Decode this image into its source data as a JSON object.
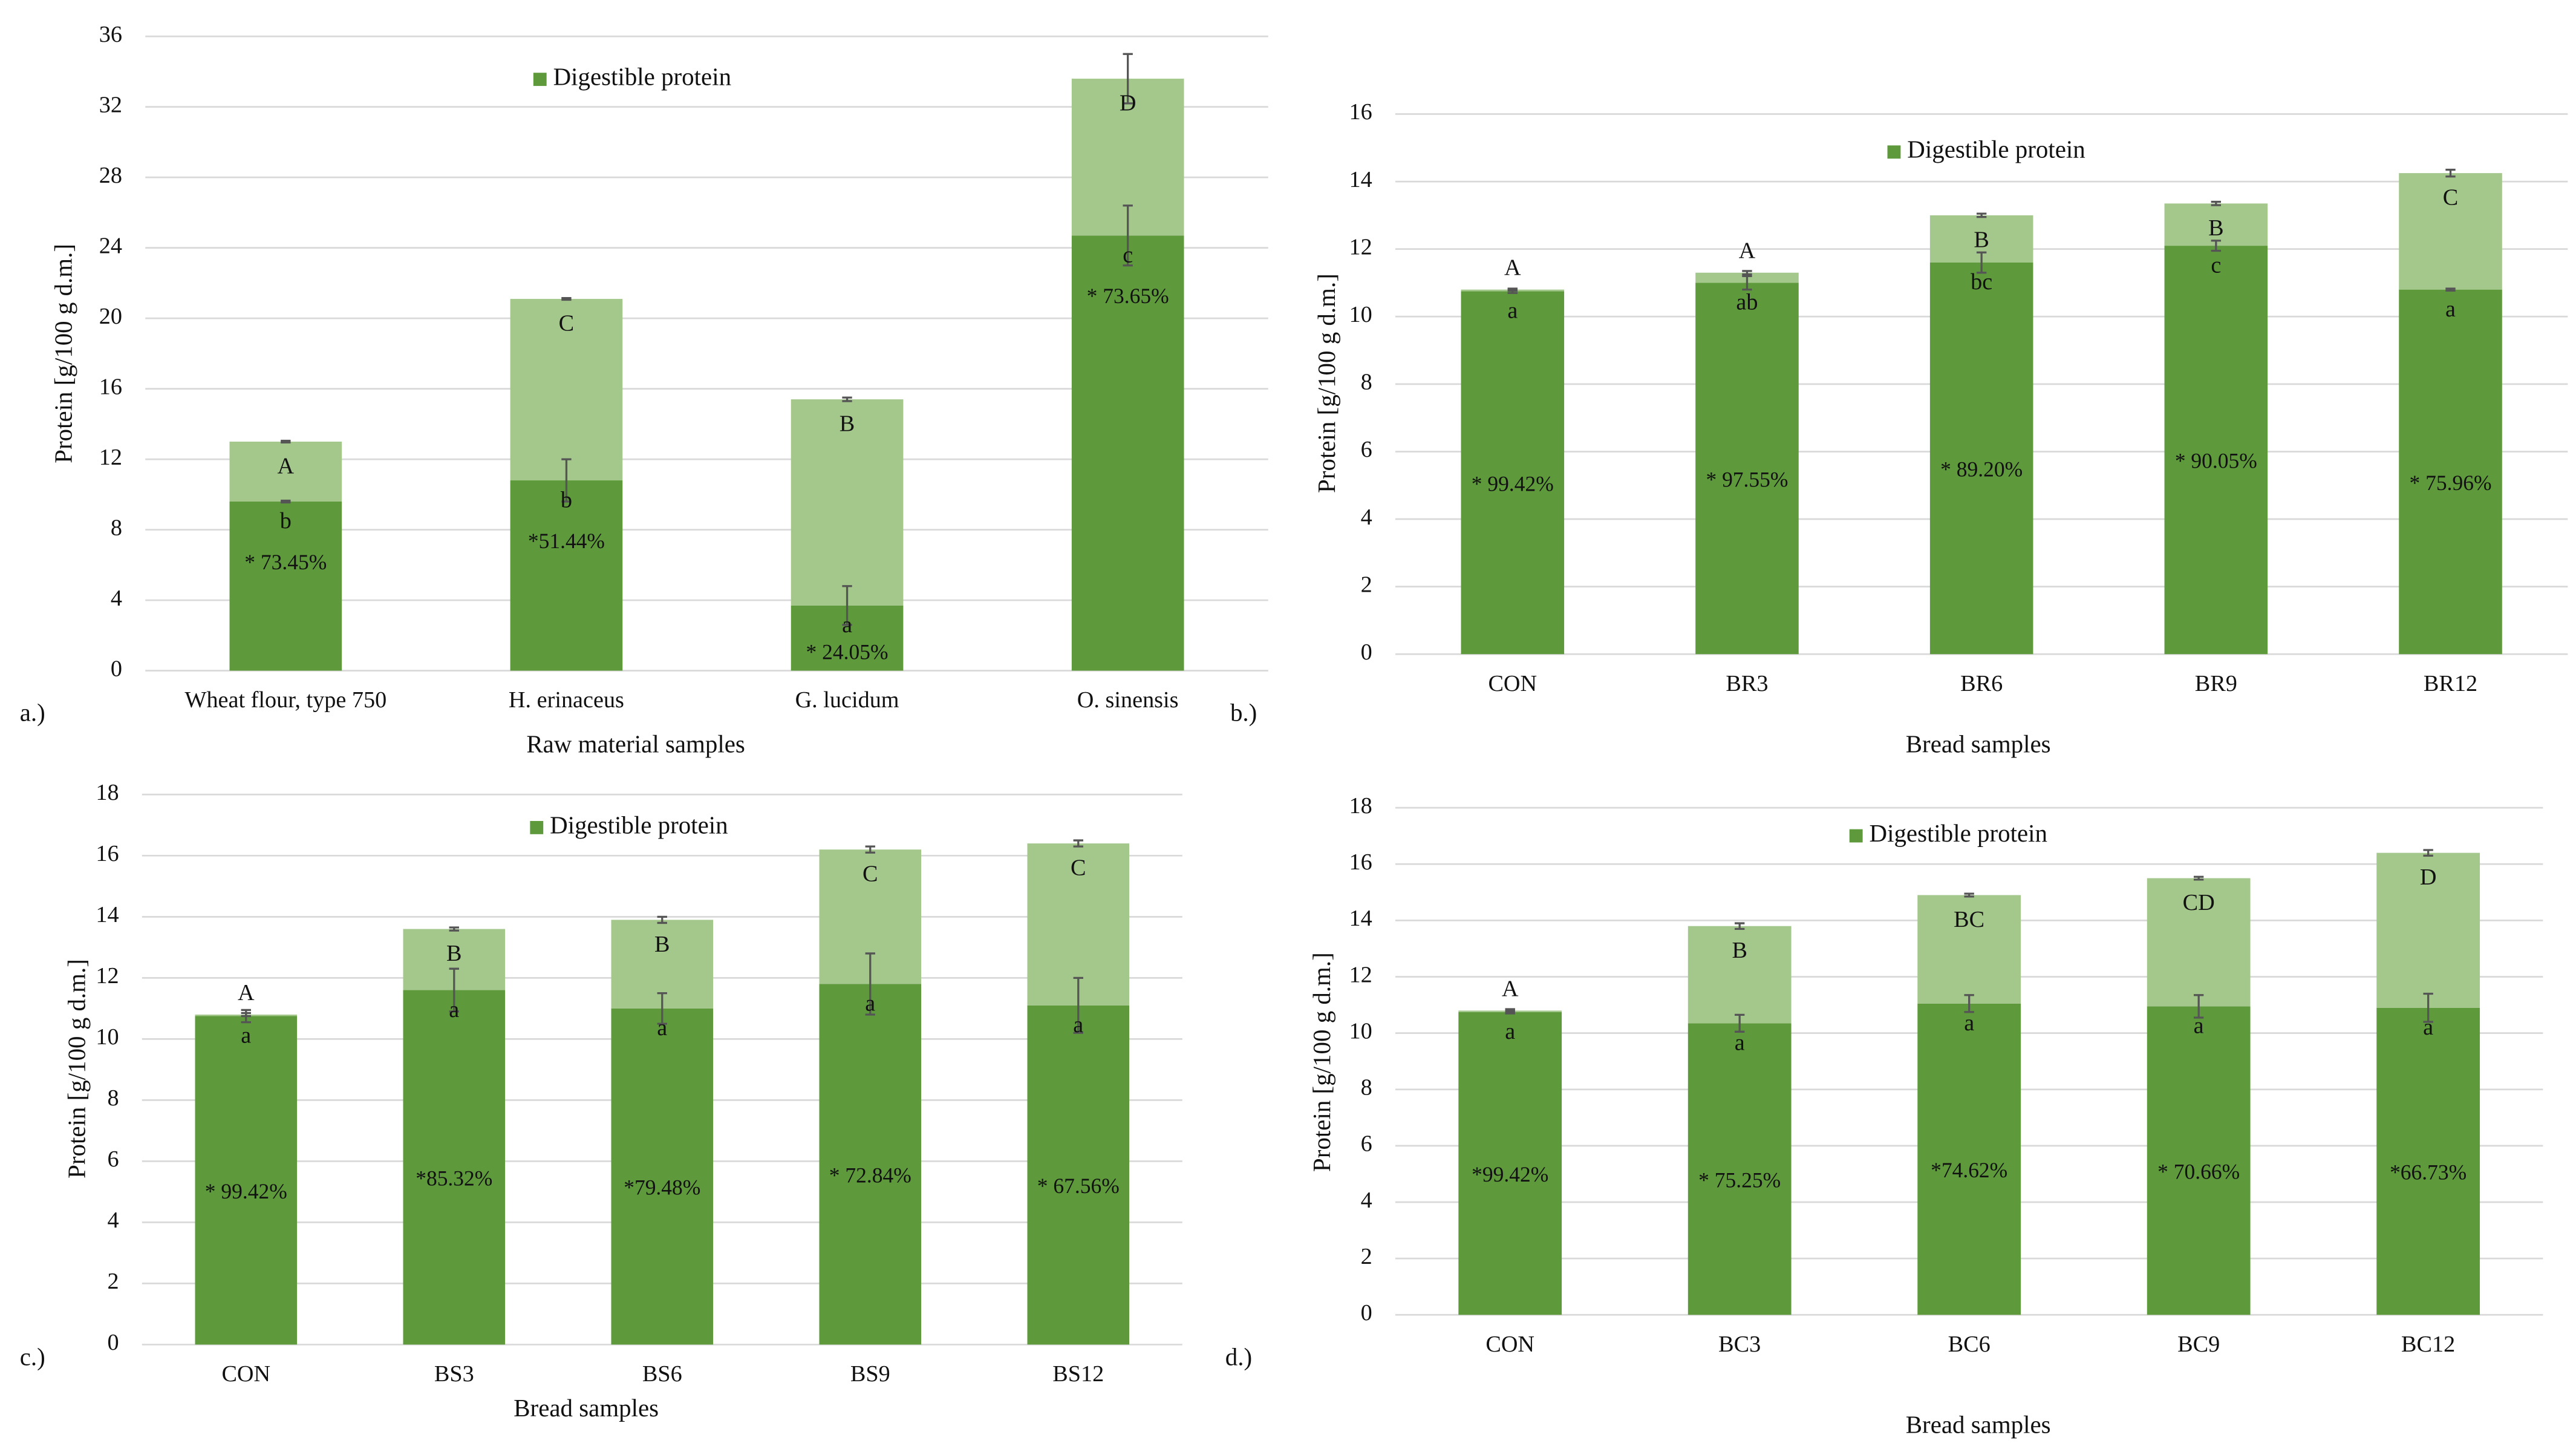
{
  "chart_data": [
    {
      "type": "bar",
      "stacked": true,
      "panel_label": "a.)",
      "xlabel": "Raw material samples",
      "ylabel": "Protein  [g/100 g d.m.]",
      "categories": [
        "Wheat flour, type 750",
        "H. erinaceus",
        "G. lucidum",
        "O. sinensis"
      ],
      "series": [
        {
          "name": "Digestible protein",
          "color": "#5e9a3c",
          "values": [
            9.6,
            10.8,
            3.7,
            24.7
          ],
          "errors": [
            0.05,
            1.2,
            1.1,
            1.7
          ]
        },
        {
          "color": "#a4c78c",
          "values": [
            3.4,
            10.3,
            11.7,
            8.9
          ],
          "errors": [
            0.05,
            0.05,
            0.1,
            1.4
          ]
        }
      ],
      "upper_letters": [
        "A",
        "C",
        "B",
        "D"
      ],
      "lower_letters": [
        "b",
        "b",
        "a",
        "c"
      ],
      "percent_labels": [
        "* 73.45%",
        "*51.44%",
        "* 24.05%",
        "* 73.65%"
      ],
      "ylim": [
        0,
        36
      ],
      "yticks": [
        0,
        4,
        8,
        12,
        16,
        20,
        24,
        28,
        32,
        36
      ],
      "grid": true,
      "legend": "top"
    },
    {
      "type": "bar",
      "stacked": true,
      "panel_label": "b.)",
      "xlabel": "Bread samples",
      "ylabel": "Protein  [g/100 g d.m.]",
      "categories": [
        "CON",
        "BR3",
        "BR6",
        "BR9",
        "BR12"
      ],
      "series": [
        {
          "name": "Digestible protein",
          "color": "#5e9a3c",
          "values": [
            10.75,
            11.0,
            11.6,
            12.1,
            10.8
          ],
          "errors": [
            0.05,
            0.2,
            0.3,
            0.15,
            0.03
          ]
        },
        {
          "color": "#a4c78c",
          "values": [
            0.05,
            0.3,
            1.4,
            1.25,
            3.45
          ],
          "errors": [
            0.03,
            0.05,
            0.05,
            0.05,
            0.1
          ]
        }
      ],
      "upper_letters": [
        "A",
        "A",
        "B",
        "B",
        "C"
      ],
      "lower_letters": [
        "a",
        "ab",
        "bc",
        "c",
        "a"
      ],
      "percent_labels": [
        "* 99.42%",
        "* 97.55%",
        "* 89.20%",
        "* 90.05%",
        "* 75.96%"
      ],
      "ylim": [
        0,
        16
      ],
      "yticks": [
        0,
        2,
        4,
        6,
        8,
        10,
        12,
        14,
        16
      ],
      "grid": true,
      "legend": "top"
    },
    {
      "type": "bar",
      "stacked": true,
      "panel_label": "c.)",
      "xlabel": "Bread samples",
      "ylabel": "Protein  [g/100 g d.m.]",
      "categories": [
        "CON",
        "BS3",
        "BS6",
        "BS9",
        "BS12"
      ],
      "series": [
        {
          "name": "Digestible protein",
          "color": "#5e9a3c",
          "values": [
            10.75,
            11.6,
            11.0,
            11.8,
            11.1
          ],
          "errors": [
            0.2,
            0.7,
            0.5,
            1.0,
            0.9
          ]
        },
        {
          "color": "#a4c78c",
          "values": [
            0.05,
            2.0,
            2.9,
            4.4,
            5.3
          ],
          "errors": [
            0.05,
            0.05,
            0.1,
            0.1,
            0.1
          ]
        }
      ],
      "upper_letters": [
        "A",
        "B",
        "B",
        "C",
        "C"
      ],
      "lower_letters": [
        "a",
        "a",
        "a",
        "a",
        "a"
      ],
      "percent_labels": [
        "*  99.42%",
        "*85.32%",
        "*79.48%",
        "* 72.84%",
        "* 67.56%"
      ],
      "ylim": [
        0,
        18
      ],
      "yticks": [
        0,
        2,
        4,
        6,
        8,
        10,
        12,
        14,
        16,
        18
      ],
      "grid": true,
      "legend": "top"
    },
    {
      "type": "bar",
      "stacked": true,
      "panel_label": "d.)",
      "xlabel": "Bread samples",
      "ylabel": "Protein  [g/100 g d.m.]",
      "categories": [
        "CON",
        "BC3",
        "BC6",
        "BC9",
        "BC12"
      ],
      "series": [
        {
          "name": "Digestible protein",
          "color": "#5e9a3c",
          "values": [
            10.75,
            10.35,
            11.05,
            10.95,
            10.9
          ],
          "errors": [
            0.05,
            0.3,
            0.3,
            0.4,
            0.5
          ]
        },
        {
          "color": "#a4c78c",
          "values": [
            0.05,
            3.45,
            3.85,
            4.55,
            5.5
          ],
          "errors": [
            0.05,
            0.1,
            0.05,
            0.05,
            0.1
          ]
        }
      ],
      "upper_letters": [
        "A",
        "B",
        "BC",
        "CD",
        "D"
      ],
      "lower_letters": [
        "a",
        "a",
        "a",
        "a",
        "a"
      ],
      "percent_labels": [
        "*99.42%",
        "* 75.25%",
        "*74.62%",
        "* 70.66%",
        "*66.73%"
      ],
      "ylim": [
        0,
        18
      ],
      "yticks": [
        0,
        2,
        4,
        6,
        8,
        10,
        12,
        14,
        16,
        18
      ],
      "grid": true,
      "legend": "top"
    }
  ]
}
